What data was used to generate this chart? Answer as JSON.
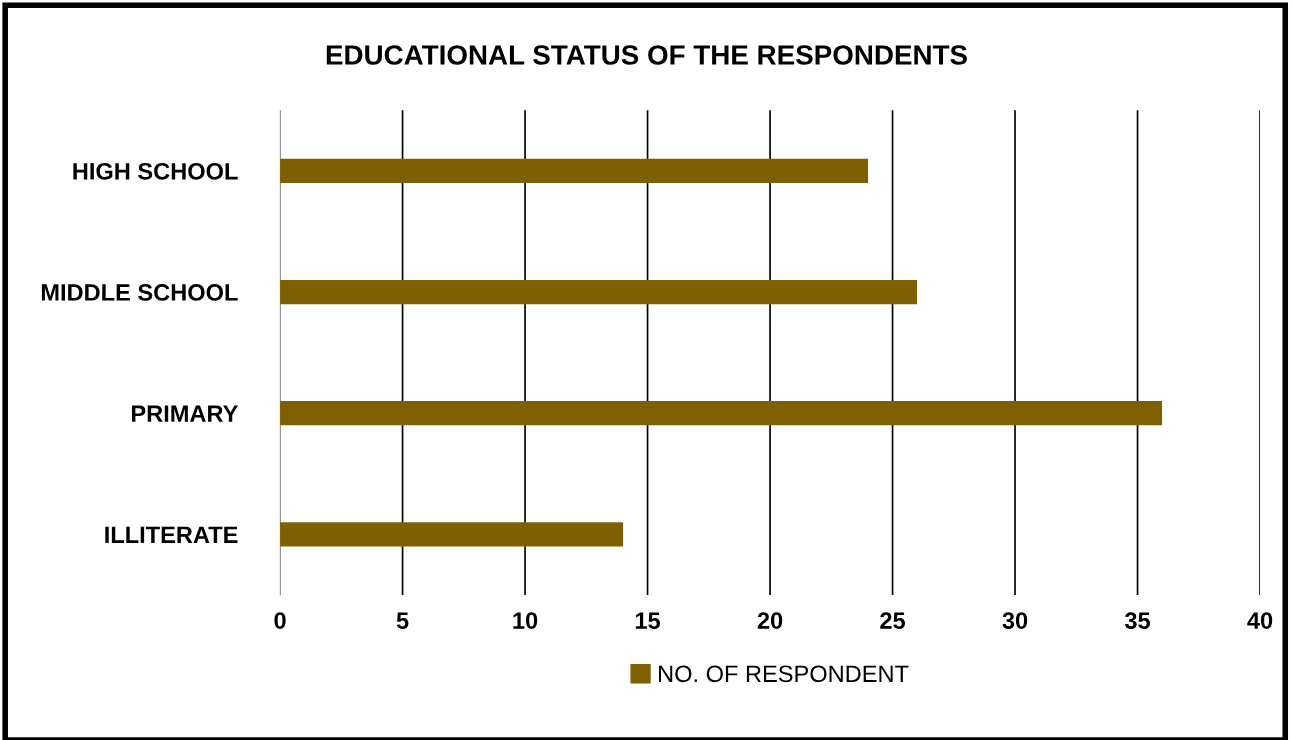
{
  "chart_data": {
    "type": "bar",
    "orientation": "horizontal",
    "title": "EDUCATIONAL STATUS OF THE RESPONDENTS",
    "categories": [
      "HIGH SCHOOL",
      "MIDDLE SCHOOL",
      "PRIMARY",
      "ILLITERATE"
    ],
    "series": [
      {
        "name": "NO. OF RESPONDENT",
        "color": "#7f6000",
        "values": [
          24,
          26,
          36,
          14
        ]
      }
    ],
    "xlim": [
      0,
      40
    ],
    "xticks": [
      0,
      5,
      10,
      15,
      20,
      25,
      30,
      35,
      40
    ],
    "grid": "x",
    "legend": "bottom"
  }
}
